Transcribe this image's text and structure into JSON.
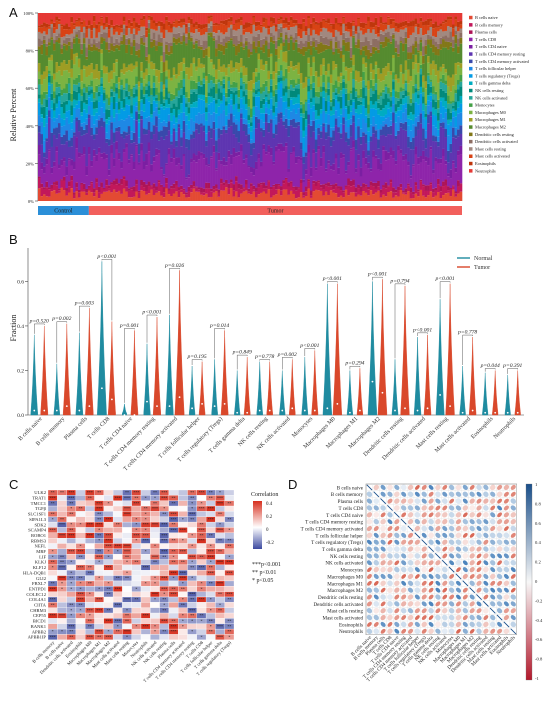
{
  "panels": {
    "a": "A",
    "b": "B",
    "c": "C",
    "d": "D"
  },
  "colors": {
    "normal": "#1f8ba0",
    "tumor": "#d9482b",
    "control_bar": "#2b8fd8",
    "tumor_bar": "#f2605c",
    "heat_pos": "#d7301f",
    "heat_neg": "#3d4aa0",
    "corr_pos": "#1a4f8a",
    "corr_neg": "#b2182b"
  },
  "chart_data": [
    {
      "type": "area",
      "panel": "A",
      "title": "",
      "ylabel": "Relative Percent",
      "yticks": [
        "0%",
        "20%",
        "40%",
        "60%",
        "80%",
        "100%"
      ],
      "ylim": [
        0,
        100
      ],
      "groups": [
        {
          "name": "Control",
          "fraction": 0.12
        },
        {
          "name": "Tumor",
          "fraction": 0.88
        }
      ],
      "legend_placement": "right",
      "legend": [
        {
          "name": "B cells naive",
          "color": "#e34a33"
        },
        {
          "name": "B cells memory",
          "color": "#c2185b"
        },
        {
          "name": "Plasma cells",
          "color": "#ad1457"
        },
        {
          "name": "T cells CD8",
          "color": "#8e24aa"
        },
        {
          "name": "T cells CD4 naive",
          "color": "#7b1fa2"
        },
        {
          "name": "T cells CD4 memory resting",
          "color": "#5e35b1"
        },
        {
          "name": "T cells CD4 memory activated",
          "color": "#3949ab"
        },
        {
          "name": "T cells follicular helper",
          "color": "#1e88e5"
        },
        {
          "name": "T cells regulatory (Tregs)",
          "color": "#039be5"
        },
        {
          "name": "T cells gamma delta",
          "color": "#00acc1"
        },
        {
          "name": "NK cells resting",
          "color": "#00897b"
        },
        {
          "name": "NK cells activated",
          "color": "#26a69a"
        },
        {
          "name": "Monocytes",
          "color": "#43a047"
        },
        {
          "name": "Macrophages M0",
          "color": "#7cb342"
        },
        {
          "name": "Macrophages M1",
          "color": "#9e9d24"
        },
        {
          "name": "Macrophages M2",
          "color": "#558b2f"
        },
        {
          "name": "Dendritic cells resting",
          "color": "#827717"
        },
        {
          "name": "Dendritic cells activated",
          "color": "#8d6e63"
        },
        {
          "name": "Mast cells resting",
          "color": "#a1887f"
        },
        {
          "name": "Mast cells activated",
          "color": "#d84315"
        },
        {
          "name": "Eosinophils",
          "color": "#bf360c"
        },
        {
          "name": "Neutrophils",
          "color": "#e53935"
        }
      ],
      "stack_mean": [
        4,
        3,
        2,
        12,
        3,
        11,
        4,
        5,
        5,
        3,
        4,
        3,
        3,
        6,
        4,
        9,
        3,
        3,
        4,
        3,
        2,
        4
      ]
    },
    {
      "type": "violin",
      "panel": "B",
      "title": "",
      "ylabel": "Fraction",
      "ylim": [
        0,
        0.75
      ],
      "yticks": [
        "0.0",
        "0.2",
        "0.4",
        "0.6"
      ],
      "series": [
        {
          "name": "Normal"
        },
        {
          "name": "Tumor"
        }
      ],
      "legend_placement": "top-right",
      "categories": [
        "B cells naive",
        "B cells memory",
        "Plasma cells",
        "T cells CD8",
        "T cells CD4 naive",
        "T cells CD4 memory resting",
        "T cells CD4 memory activated",
        "T cells follicular helper",
        "T cells regulatory (Tregs)",
        "T cells gamma delta",
        "NK cells resting",
        "NK cells activated",
        "Monocytes",
        "Macrophages M0",
        "Macrophages M1",
        "Macrophages M2",
        "Dendritic cells resting",
        "Dendritic cells activated",
        "Mast cells resting",
        "Mast cells activated",
        "Eosinophils",
        "Neutrophils"
      ],
      "p_values": [
        "p=0.520",
        "p=0.002",
        "p=0.003",
        "p<0.001",
        "p=0.001",
        "p<0.001",
        "p=0.026",
        "p=0.195",
        "p=0.014",
        "p=0.849",
        "p=0.778",
        "p=0.002",
        "p<0.001",
        "p<0.001",
        "p=0.294",
        "p<0.001",
        "p=0.794",
        "p<0.001",
        "p<0.001",
        "p=0.778",
        "p=0.044",
        "p=0.391"
      ],
      "normal_max": [
        0.36,
        0.23,
        0.37,
        0.69,
        0.05,
        0.32,
        0.45,
        0.22,
        0.25,
        0.2,
        0.24,
        0.2,
        0.26,
        0.59,
        0.2,
        0.6,
        0.25,
        0.35,
        0.52,
        0.22,
        0.19,
        0.18
      ],
      "tumor_max": [
        0.4,
        0.41,
        0.48,
        0.42,
        0.38,
        0.44,
        0.65,
        0.24,
        0.38,
        0.26,
        0.24,
        0.25,
        0.29,
        0.59,
        0.21,
        0.61,
        0.58,
        0.36,
        0.59,
        0.35,
        0.2,
        0.2
      ],
      "normal_median": [
        0.02,
        0.02,
        0.02,
        0.12,
        0.0,
        0.06,
        0.04,
        0.03,
        0.04,
        0.01,
        0.02,
        0.02,
        0.02,
        0.03,
        0.01,
        0.15,
        0.02,
        0.02,
        0.09,
        0.01,
        0.01,
        0.01
      ],
      "tumor_median": [
        0.02,
        0.04,
        0.04,
        0.07,
        0.0,
        0.04,
        0.08,
        0.05,
        0.05,
        0.01,
        0.02,
        0.03,
        0.02,
        0.05,
        0.02,
        0.1,
        0.03,
        0.03,
        0.04,
        0.02,
        0.01,
        0.01
      ]
    },
    {
      "type": "heatmap",
      "panel": "C",
      "title": "",
      "legend_title": "Correlation",
      "legend_ticks": [
        "0.4",
        "0.2",
        "0",
        "-0.2"
      ],
      "significance": [
        "***p<0.001",
        "** p<0.01",
        "* p<0.05"
      ],
      "rows": [
        "ULK2",
        "TRAT1",
        "TMCC1",
        "TGFβ",
        "SLC1SF1",
        "SIPA1L3",
        "SDK2",
        "SCAMP4",
        "ROBO1",
        "RBMS3",
        "NEFL",
        "MRF",
        "LIF",
        "KLKJ",
        "KLF12",
        "HLA-DQB1",
        "GLI2",
        "FBXL7",
        "ENTPD1",
        "COLEC12",
        "COL4A1",
        "CIITA",
        "CHRM3",
        "CEP55",
        "BICD1",
        "BANK1",
        "APBB2",
        "APBB1IP"
      ],
      "columns": [
        "B cells memory",
        "B cells naive",
        "Dendritic cells activated",
        "Eosinophils",
        "Macrophages M0",
        "Macrophages M1",
        "Macrophages M2",
        "Mast cells activated",
        "Mast cells resting",
        "Monocytes",
        "Neutrophils",
        "NK cells activated",
        "NK cells resting",
        "Plasma cells",
        "T cells CD4 memory activated",
        "T cells CD4 memory resting",
        "T cells CD8",
        "T cells follicular helper",
        "T cells gamma delta",
        "T cells regulatory (Tregs)"
      ]
    },
    {
      "type": "heatmap",
      "panel": "D",
      "title": "",
      "legend_ticks": [
        "1",
        "0.8",
        "0.6",
        "0.4",
        "0.2",
        "0",
        "-0.2",
        "-0.4",
        "-0.6",
        "-0.8",
        "-1"
      ],
      "labels": [
        "B cells naive",
        "B cells memory",
        "Plasma cells",
        "T cells CD8",
        "T cells CD4 naive",
        "T cells CD4 memory resting",
        "T cells CD4 memory activated",
        "T cells follicular helper",
        "T cells regulatory (Tregs)",
        "T cells gamma delta",
        "NK cells resting",
        "NK cells activated",
        "Monocytes",
        "Macrophages M0",
        "Macrophages M1",
        "Macrophages M2",
        "Dendritic cells resting",
        "Dendritic cells activated",
        "Mast cells resting",
        "Mast cells activated",
        "Eosinophils",
        "Neutrophils"
      ]
    }
  ]
}
